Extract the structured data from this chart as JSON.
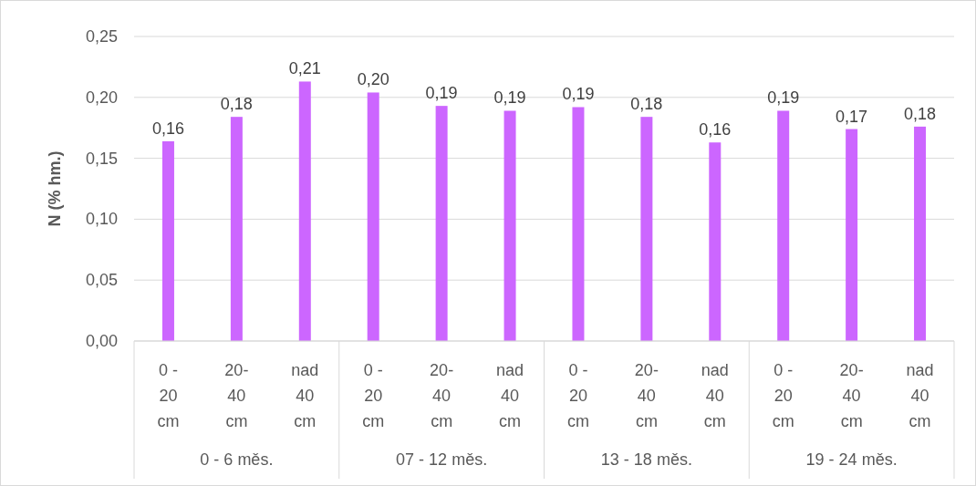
{
  "chart_data": {
    "type": "bar",
    "ylabel": "N (% hm.)",
    "categories": [
      "0 - 20 cm",
      "20-40 cm",
      "nad 40 cm",
      "0 - 20 cm",
      "20-40 cm",
      "nad 40 cm",
      "0 - 20 cm",
      "20-40 cm",
      "nad 40 cm",
      "0 - 20 cm",
      "20-40 cm",
      "nad 40 cm"
    ],
    "values": [
      0.164,
      0.184,
      0.213,
      0.204,
      0.193,
      0.189,
      0.192,
      0.184,
      0.163,
      0.189,
      0.174,
      0.176
    ],
    "value_labels": [
      "0,16",
      "0,18",
      "0,21",
      "0,20",
      "0,19",
      "0,19",
      "0,19",
      "0,18",
      "0,16",
      "0,19",
      "0,17",
      "0,18"
    ],
    "color": "#cc66ff",
    "ylim": [
      0,
      0.25
    ],
    "yticks": [
      {
        "value": 0,
        "label": "0,00"
      },
      {
        "value": 0.05,
        "label": "0,05"
      },
      {
        "value": 0.1,
        "label": "0,10"
      },
      {
        "value": 0.15,
        "label": "0,15"
      },
      {
        "value": 0.2,
        "label": "0,20"
      },
      {
        "value": 0.25,
        "label": "0,25"
      }
    ],
    "grid": "y",
    "annotations": [
      "0 - 6 měs.",
      "07 - 12 měs.",
      "13 - 18 měs.",
      "19 - 24 měs."
    ]
  }
}
